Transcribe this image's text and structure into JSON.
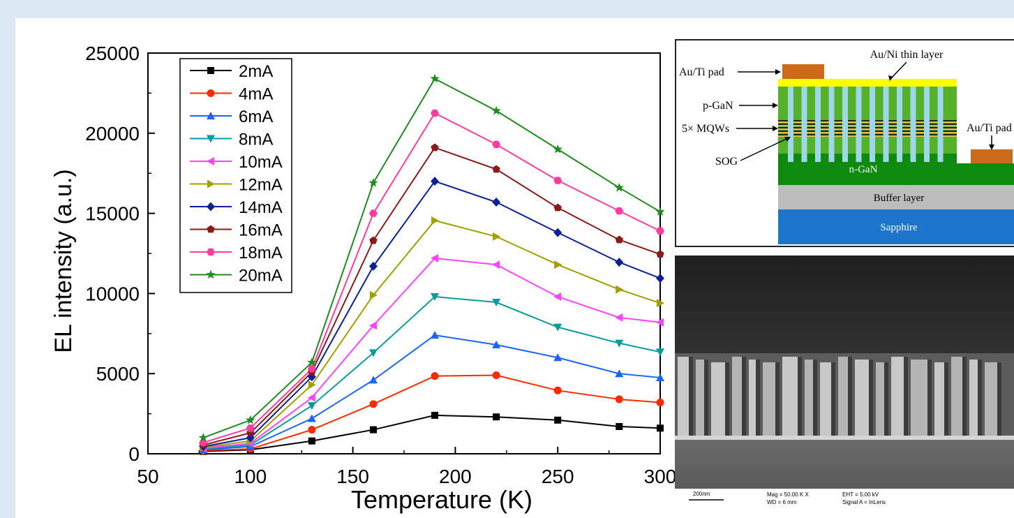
{
  "chart_data": {
    "type": "line",
    "xlabel": "Temperature (K)",
    "ylabel": "EL intensity (a.u.)",
    "xlim": [
      50,
      300
    ],
    "ylim": [
      0,
      25000
    ],
    "xticks": [
      50,
      100,
      150,
      200,
      250,
      300
    ],
    "yticks": [
      0,
      5000,
      10000,
      15000,
      20000,
      25000
    ],
    "grid": false,
    "legend_position": "top-left",
    "x": [
      77,
      100,
      130,
      160,
      190,
      220,
      250,
      280,
      300
    ],
    "series": [
      {
        "name": "2mA",
        "marker": "square",
        "color": "#000000",
        "values": [
          150,
          250,
          800,
          1500,
          2400,
          2300,
          2100,
          1700,
          1600
        ]
      },
      {
        "name": "4mA",
        "marker": "circle",
        "color": "#ff2a00",
        "values": [
          200,
          300,
          1500,
          3100,
          4850,
          4900,
          3950,
          3400,
          3200
        ]
      },
      {
        "name": "6mA",
        "marker": "triangle-up",
        "color": "#1c63ff",
        "values": [
          250,
          450,
          2200,
          4600,
          7400,
          6800,
          6000,
          5000,
          4750
        ]
      },
      {
        "name": "8mA",
        "marker": "triangle-down",
        "color": "#0a9c9c",
        "values": [
          300,
          550,
          3000,
          6300,
          9800,
          9450,
          7900,
          6900,
          6350
        ]
      },
      {
        "name": "10mA",
        "marker": "triangle-left",
        "color": "#ff44ff",
        "values": [
          350,
          650,
          3500,
          8000,
          12200,
          11800,
          9800,
          8500,
          8200
        ]
      },
      {
        "name": "12mA",
        "marker": "triangle-right",
        "color": "#a0a000",
        "values": [
          400,
          800,
          4300,
          9900,
          14550,
          13550,
          11800,
          10250,
          9400
        ]
      },
      {
        "name": "14mA",
        "marker": "diamond",
        "color": "#0a1f99",
        "values": [
          450,
          1000,
          4800,
          11700,
          17000,
          15700,
          13800,
          11950,
          10950
        ]
      },
      {
        "name": "16mA",
        "marker": "pentagon",
        "color": "#8b1a1a",
        "values": [
          550,
          1300,
          5100,
          13300,
          19100,
          17750,
          15350,
          13350,
          12450
        ]
      },
      {
        "name": "18mA",
        "marker": "hexagon",
        "color": "#ff3d9e",
        "values": [
          700,
          1600,
          5300,
          15000,
          21250,
          19300,
          17050,
          15150,
          13900
        ]
      },
      {
        "name": "20mA",
        "marker": "star",
        "color": "#1e8c1e",
        "values": [
          1000,
          2100,
          5700,
          16900,
          23400,
          21400,
          19000,
          16600,
          15100
        ]
      }
    ]
  },
  "schematic": {
    "labels": {
      "au_ni": "Au/Ni thin layer",
      "au_ti_left": "Au/Ti pad",
      "p_gan": "p-GaN",
      "mqws": "5× MQWs",
      "sog": "SOG",
      "au_ti_right": "Au/Ti pad",
      "n_gan": "n-GaN",
      "buffer": "Buffer layer",
      "sapphire": "Sapphire"
    },
    "colors": {
      "au_ti": "#cc6a1a",
      "au_ni": "#ffff00",
      "p_gan": "#55b02a",
      "n_gan": "#0e8a0e",
      "pillar": "#9ed8e8",
      "buffer": "#bdbdbd",
      "sapphire": "#1d74cc"
    }
  },
  "sem": {
    "scale_text": "200nm",
    "info_left_1": "Mag =  50.00 K X",
    "info_left_2": "WD =    6 mm",
    "info_right_1": "EHT =  5.00 kV",
    "info_right_2": "Signal A = InLens"
  }
}
